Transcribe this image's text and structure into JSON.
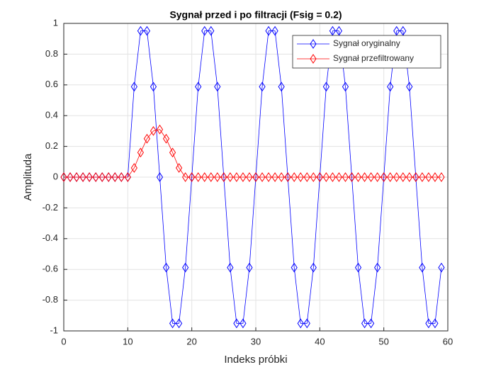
{
  "chart_data": {
    "type": "line",
    "title": "Sygnał przed i po filtracji (Fsig = 0.2)",
    "x_label": "Indeks próbki",
    "y_label": "Amplituda",
    "x": [
      0,
      1,
      2,
      3,
      4,
      5,
      6,
      7,
      8,
      9,
      10,
      11,
      12,
      13,
      14,
      15,
      16,
      17,
      18,
      19,
      20,
      21,
      22,
      23,
      24,
      25,
      26,
      27,
      28,
      29,
      30,
      31,
      32,
      33,
      34,
      35,
      36,
      37,
      38,
      39,
      40,
      41,
      42,
      43,
      44,
      45,
      46,
      47,
      48,
      49,
      50,
      51,
      52,
      53,
      54,
      55,
      56,
      57,
      58,
      59
    ],
    "series": [
      {
        "name": "Sygnał oryginalny",
        "color": "#0000ff",
        "values": [
          0,
          0,
          0,
          0,
          0,
          0,
          0,
          0,
          0,
          0,
          0,
          0.588,
          0.951,
          0.951,
          0.588,
          0,
          -0.588,
          -0.951,
          -0.951,
          -0.588,
          0,
          0.588,
          0.951,
          0.951,
          0.588,
          0,
          -0.588,
          -0.951,
          -0.951,
          -0.588,
          0,
          0.588,
          0.951,
          0.951,
          0.588,
          0,
          -0.588,
          -0.951,
          -0.951,
          -0.588,
          0,
          0.588,
          0.951,
          0.951,
          0.588,
          0,
          -0.588,
          -0.951,
          -0.951,
          -0.588,
          0,
          0.588,
          0.951,
          0.951,
          0.588,
          0,
          -0.588,
          -0.951,
          -0.951,
          -0.588
        ]
      },
      {
        "name": "Sygnał przefiltrowany",
        "color": "#ff0000",
        "values": [
          0,
          0,
          0,
          0,
          0,
          0,
          0,
          0,
          0,
          0,
          0,
          0.06,
          0.16,
          0.25,
          0.3,
          0.31,
          0.25,
          0.16,
          0.06,
          0,
          0,
          0,
          0,
          0,
          0,
          0,
          0,
          0,
          0,
          0,
          0,
          0,
          0,
          0,
          0,
          0,
          0,
          0,
          0,
          0,
          0,
          0,
          0,
          0,
          0,
          0,
          0,
          0,
          0,
          0,
          0,
          0,
          0,
          0,
          0,
          0,
          0,
          0,
          0,
          0
        ]
      }
    ],
    "xlim": [
      0,
      60
    ],
    "xticks": [
      0,
      10,
      20,
      30,
      40,
      50,
      60
    ],
    "ylim": [
      -1,
      1
    ],
    "yticks": [
      -1,
      -0.8,
      -0.6,
      -0.4,
      -0.2,
      0,
      0.2,
      0.4,
      0.6,
      0.8,
      1
    ],
    "grid": true,
    "legend": "top-right"
  }
}
